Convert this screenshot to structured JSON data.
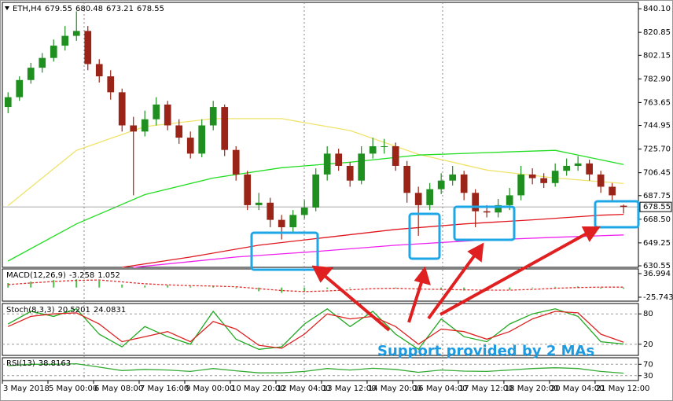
{
  "chart_data": [
    {
      "type": "candlestick",
      "title": "ETH,H4",
      "up_color": "#1f8f1f",
      "down_color": "#9a2418",
      "open": [
        760,
        768,
        782,
        792,
        800,
        810,
        818,
        822,
        795,
        785,
        772,
        745,
        740,
        750,
        762,
        745,
        735,
        722,
        745,
        760,
        725,
        705,
        680,
        682,
        668,
        662,
        672,
        678,
        705,
        722,
        712,
        700,
        722,
        728,
        728,
        712,
        690,
        680,
        693,
        700,
        705,
        690,
        675,
        674,
        680,
        688,
        705,
        702,
        698,
        708,
        712,
        714,
        705,
        695,
        679.55
      ],
      "high": [
        772,
        785,
        796,
        804,
        815,
        826,
        838,
        826,
        799,
        790,
        775,
        752,
        757,
        768,
        765,
        750,
        740,
        750,
        765,
        762,
        728,
        708,
        690,
        686,
        672,
        676,
        684,
        710,
        728,
        726,
        715,
        728,
        735,
        734,
        731,
        716,
        695,
        698,
        706,
        712,
        708,
        693,
        680,
        685,
        694,
        712,
        710,
        706,
        714,
        718,
        720,
        717,
        708,
        698,
        680.48
      ],
      "low": [
        755,
        765,
        779,
        788,
        797,
        806,
        814,
        790,
        780,
        766,
        740,
        688,
        736,
        745,
        741,
        730,
        718,
        719,
        741,
        720,
        700,
        676,
        676,
        662,
        652,
        658,
        669,
        675,
        700,
        708,
        695,
        697,
        718,
        722,
        708,
        682,
        655,
        676,
        689,
        696,
        684,
        662,
        670,
        670,
        676,
        684,
        697,
        694,
        695,
        704,
        708,
        700,
        690,
        684,
        673.21
      ],
      "close": [
        768,
        782,
        792,
        800,
        810,
        818,
        822,
        795,
        785,
        772,
        745,
        740,
        750,
        762,
        745,
        735,
        722,
        745,
        760,
        725,
        705,
        680,
        682,
        668,
        662,
        672,
        678,
        705,
        722,
        712,
        700,
        722,
        728,
        728,
        712,
        690,
        680,
        693,
        700,
        705,
        690,
        675,
        674,
        680,
        688,
        705,
        702,
        698,
        708,
        712,
        714,
        705,
        695,
        688,
        678.55
      ],
      "lines": [
        {
          "color": "#f0e36a",
          "x": [
            0,
            6,
            12,
            18,
            24,
            30,
            36,
            42,
            48,
            54
          ],
          "values": [
            679.6,
            724.7,
            744.0,
            750.5,
            750.5,
            740.8,
            721.5,
            708.6,
            702.1,
            697.6
          ]
        },
        {
          "color": "#22dd22",
          "x": [
            0,
            6,
            12,
            18,
            24,
            30,
            36,
            42,
            48,
            54
          ],
          "values": [
            634.4,
            664.7,
            688.6,
            702.1,
            710.5,
            715.0,
            720.8,
            722.8,
            724.7,
            713.1
          ]
        },
        {
          "color": "#e0161e",
          "x": [
            10,
            16,
            22,
            28,
            34,
            40,
            46,
            52,
            54
          ],
          "values": [
            629.3,
            637.7,
            647.3,
            653.8,
            660.2,
            664.7,
            668.0,
            671.8,
            672.5
          ]
        },
        {
          "color": "#ee22ee",
          "x": [
            11,
            20,
            27,
            34,
            41,
            48,
            54
          ],
          "values": [
            629.3,
            637.7,
            642.2,
            647.3,
            651.2,
            653.8,
            655.7
          ]
        }
      ],
      "price_line": true,
      "xlim": [
        -0.5,
        55.3
      ],
      "ylim": [
        629.3,
        845.3
      ],
      "yticks": [
        840.1,
        820.85,
        802.15,
        782.9,
        763.65,
        744.95,
        725.7,
        706.45,
        687.75,
        668.5,
        649.25,
        630.55
      ],
      "ytick_labels": [
        "840.10",
        "820.85",
        "802.15",
        "782.90",
        "763.65",
        "744.95",
        "725.70",
        "706.45",
        "687.75",
        "668.50",
        "649.25",
        "630.55"
      ],
      "xticks": [
        {
          "value": -0.5,
          "label": "3 May 2018"
        },
        {
          "value": 3.5,
          "label": "5 May 00:00"
        },
        {
          "value": 7.5,
          "label": "6 May 08:00"
        },
        {
          "value": 11.5,
          "label": "7 May 16:00"
        },
        {
          "value": 15.5,
          "label": "9 May 00:00"
        },
        {
          "value": 19.5,
          "label": "10 May 20:00"
        },
        {
          "value": 23.5,
          "label": "12 May 04:00"
        },
        {
          "value": 27.5,
          "label": "13 May 12:00"
        },
        {
          "value": 31.5,
          "label": "14 May 20:00"
        },
        {
          "value": 35.5,
          "label": "16 May 04:00"
        },
        {
          "value": 39.5,
          "label": "17 May 12:00"
        },
        {
          "value": 43.5,
          "label": "18 May 20:00"
        },
        {
          "value": 47.5,
          "label": "20 May 04:00"
        },
        {
          "value": 51.5,
          "label": "21 May 12:00"
        }
      ],
      "annotation": "Support provided by 2 MAs"
    },
    {
      "type": "bar",
      "title": "MACD(12,26,9)",
      "xlim": [
        -0.5,
        55.3
      ],
      "ylim": [
        -36.2,
        49.5
      ],
      "yticks": [
        36.994,
        -25.743
      ],
      "series": [
        {
          "style": "bar",
          "color": "#4cbf4c",
          "x": [
            0,
            2,
            4,
            6,
            8,
            10,
            12,
            14,
            16,
            18,
            20,
            22,
            24,
            26,
            28,
            30,
            32,
            34,
            36,
            38,
            40,
            42,
            44,
            46,
            48,
            50,
            52,
            54
          ],
          "values": [
            12,
            16,
            20,
            22,
            18,
            8,
            5,
            6,
            3,
            4,
            -2,
            -10,
            -14,
            -12,
            -4,
            -2,
            0,
            -2,
            -8,
            -6,
            -8,
            -9,
            -6,
            -2,
            2,
            3,
            -3,
            -3.258
          ]
        },
        {
          "style": "line",
          "color": "#e03030",
          "dash": true,
          "x": [
            0,
            2,
            4,
            6,
            8,
            10,
            12,
            14,
            16,
            18,
            20,
            22,
            24,
            26,
            28,
            30,
            32,
            34,
            36,
            38,
            40,
            42,
            44,
            46,
            48,
            50,
            52,
            54
          ],
          "values": [
            8,
            12,
            16,
            19,
            20,
            15,
            10,
            7,
            5,
            4,
            2,
            -3,
            -8,
            -11,
            -9,
            -6,
            -3,
            -2,
            -4,
            -5,
            -6,
            -7,
            -7,
            -5,
            -2,
            0,
            1,
            1.052
          ]
        }
      ]
    },
    {
      "type": "line",
      "title": "Stoch(8,3,3)",
      "xlim": [
        -0.5,
        55.3
      ],
      "ylim": [
        -2,
        100.5
      ],
      "yticks": [
        80,
        20
      ],
      "grid": true,
      "series": [
        {
          "color": "#22aa22",
          "x": [
            0,
            2,
            4,
            6,
            8,
            10,
            12,
            14,
            16,
            18,
            20,
            22,
            24,
            26,
            28,
            30,
            32,
            34,
            36,
            38,
            40,
            42,
            44,
            46,
            48,
            50,
            52,
            54
          ],
          "values": [
            60,
            85,
            75,
            90,
            40,
            15,
            55,
            35,
            20,
            85,
            30,
            10,
            15,
            60,
            90,
            55,
            85,
            40,
            10,
            70,
            35,
            25,
            60,
            80,
            90,
            75,
            25,
            20.5201
          ]
        },
        {
          "color": "#dd2222",
          "x": [
            0,
            2,
            4,
            6,
            8,
            10,
            12,
            14,
            16,
            18,
            20,
            22,
            24,
            26,
            28,
            30,
            32,
            34,
            36,
            38,
            40,
            42,
            44,
            46,
            48,
            50,
            52,
            54
          ],
          "values": [
            55,
            75,
            80,
            82,
            60,
            25,
            35,
            45,
            25,
            65,
            50,
            18,
            12,
            40,
            80,
            70,
            75,
            55,
            20,
            50,
            45,
            30,
            45,
            70,
            85,
            82,
            40,
            24.0831
          ]
        }
      ]
    },
    {
      "type": "line",
      "title": "RSI(13)",
      "xlim": [
        -0.5,
        55.3
      ],
      "ylim": [
        12.9,
        92.9
      ],
      "yticks": [
        70,
        30
      ],
      "grid": true,
      "series": [
        {
          "color": "#33aa33",
          "x": [
            0,
            2,
            4,
            6,
            8,
            10,
            12,
            14,
            16,
            18,
            20,
            22,
            24,
            26,
            28,
            30,
            32,
            34,
            36,
            38,
            40,
            42,
            44,
            46,
            48,
            50,
            52,
            54
          ],
          "values": [
            65,
            70,
            70,
            72,
            60,
            48,
            52,
            50,
            45,
            55,
            47,
            40,
            40,
            45,
            55,
            50,
            56,
            52,
            42,
            50,
            46,
            45,
            50,
            55,
            58,
            55,
            45,
            38.8163
          ]
        }
      ]
    }
  ]
}
